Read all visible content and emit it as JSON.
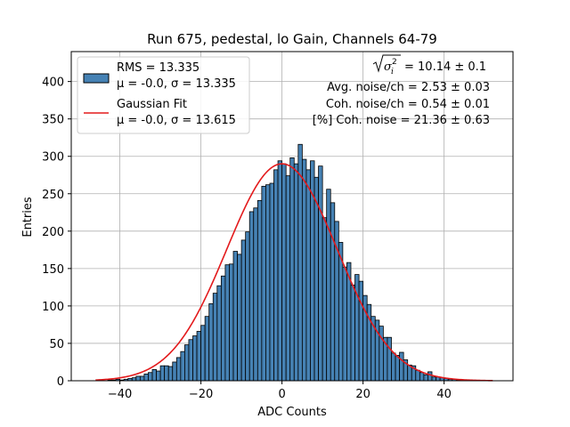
{
  "chart_data": {
    "type": "bar",
    "title": "Run 675, pedestal, lo Gain, Channels 64-79",
    "xlabel": "ADC Counts",
    "ylabel": "Entries",
    "xlim": [
      -52,
      57
    ],
    "ylim": [
      0,
      440
    ],
    "xticks": [
      -40,
      -20,
      0,
      20,
      40
    ],
    "yticks": [
      0,
      50,
      100,
      150,
      200,
      250,
      300,
      350,
      400
    ],
    "grid": true,
    "bin_start": -46,
    "bin_width": 1,
    "histogram_counts": [
      0,
      0,
      0,
      1,
      1,
      2,
      1,
      2,
      3,
      4,
      6,
      6,
      9,
      11,
      15,
      13,
      20,
      20,
      19,
      25,
      31,
      39,
      48,
      55,
      60,
      66,
      74,
      86,
      103,
      117,
      127,
      140,
      155,
      156,
      173,
      169,
      188,
      199,
      226,
      231,
      241,
      260,
      262,
      264,
      282,
      294,
      290,
      274,
      298,
      290,
      316,
      296,
      282,
      294,
      272,
      287,
      218,
      256,
      238,
      213,
      185,
      152,
      158,
      128,
      142,
      133,
      114,
      102,
      86,
      81,
      73,
      58,
      58,
      37,
      34,
      38,
      28,
      21,
      20,
      14,
      11,
      8,
      12,
      5,
      5,
      4,
      3,
      2,
      2,
      1,
      1,
      0,
      1,
      0,
      0,
      0,
      0,
      0,
      0,
      0
    ],
    "series": [
      {
        "name": "RMS = 13.335",
        "name_line2": "μ = -0.0, σ = 13.335",
        "type": "histogram",
        "color": "#4682b4",
        "edgecolor": "#000000"
      },
      {
        "name": "Gaussian Fit",
        "name_line2": "μ = -0.0, σ = 13.615",
        "type": "line",
        "color": "#e31a1c",
        "mu": 0.0,
        "sigma": 13.615,
        "amplitude": 290,
        "x_range": [
          -46,
          52
        ]
      }
    ],
    "legend_position": "top-left",
    "annotations": {
      "sqrt_value": "= 10.14 ± 0.1",
      "avg_noise": "Avg. noise/ch = 2.53 ± 0.03",
      "coh_noise": "Coh. noise/ch = 0.54 ± 0.01",
      "coh_percent": "[%] Coh. noise = 21.36 ± 0.63"
    }
  }
}
